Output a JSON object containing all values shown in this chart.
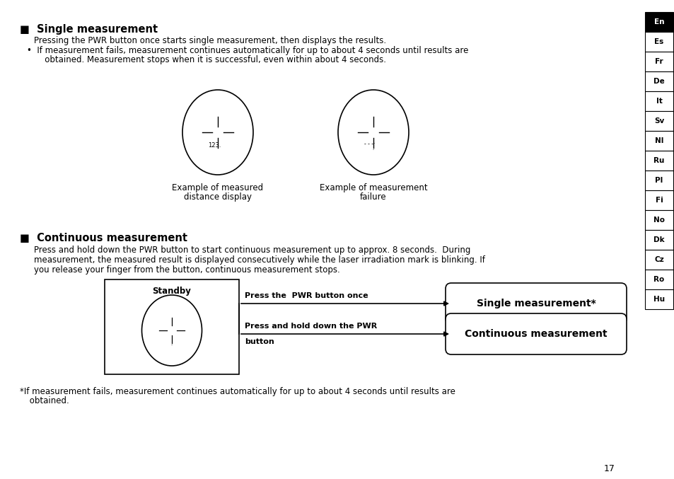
{
  "background_color": "#ffffff",
  "page_number": "17",
  "lang_tabs": [
    "En",
    "Es",
    "Fr",
    "De",
    "It",
    "Sv",
    "Nl",
    "Ru",
    "Pl",
    "Fi",
    "No",
    "Dk",
    "Cz",
    "Ro",
    "Hu"
  ],
  "lang_tab_active": "En",
  "section1_title": "■  Single measurement",
  "section1_line1": "Pressing the PWR button once starts single measurement, then displays the results.",
  "section1_bullet1": "•  If measurement fails, measurement continues automatically for up to about 4 seconds until results are",
  "section1_bullet2": "   obtained. Measurement stops when it is successful, even within about 4 seconds.",
  "circle1_label1": "Example of measured",
  "circle1_label2": "distance display",
  "circle1_text": "123.",
  "circle2_label1": "Example of measurement",
  "circle2_label2": "failure",
  "section2_title": "■  Continuous measurement",
  "section2_body1": "Press and hold down the PWR button to start continuous measurement up to approx. 8 seconds.  During",
  "section2_body2": "measurement, the measured result is displayed consecutively while the laser irradiation mark is blinking. If",
  "section2_body3": "you release your finger from the button, continuous measurement stops.",
  "diagram_standby_label": "Standby",
  "diagram_arrow1_label": "Press the  PWR button once",
  "diagram_arrow2a": "Press and hold down the PWR",
  "diagram_arrow2b": "button",
  "diagram_box1_text": "Single measurement*",
  "diagram_box2_text": "Continuous measurement",
  "footnote1": "*If measurement fails, measurement continues automatically for up to about 4 seconds until results are",
  "footnote2": " obtained."
}
